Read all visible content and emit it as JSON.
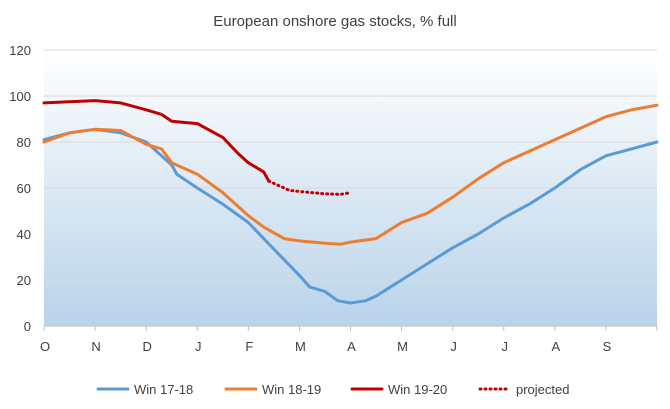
{
  "chart_data": {
    "type": "line",
    "title": "European onshore gas stocks, % full",
    "xlabel": "",
    "ylabel": "",
    "ylim": [
      0,
      120
    ],
    "yticks": [
      "0",
      "20",
      "40",
      "60",
      "80",
      "100",
      "120"
    ],
    "x_months": [
      "O",
      "N",
      "D",
      "J",
      "F",
      "M",
      "A",
      "M",
      "J",
      "J",
      "A",
      "S"
    ],
    "x_axis_note_range_months": [
      0,
      12
    ],
    "grid": true,
    "legend_position": "bottom",
    "background_gradient": [
      "#ffffff",
      "#b9d3ea"
    ],
    "series": [
      {
        "name": "Win 17-18",
        "color": "#5b9bd5",
        "style": "solid",
        "points": [
          [
            0,
            81
          ],
          [
            0.5,
            84
          ],
          [
            1,
            85.5
          ],
          [
            1.5,
            84
          ],
          [
            2,
            80
          ],
          [
            2.5,
            70
          ],
          [
            2.6,
            66
          ],
          [
            3,
            60
          ],
          [
            3.5,
            53
          ],
          [
            4,
            45
          ],
          [
            4.3,
            38
          ],
          [
            5,
            22
          ],
          [
            5.2,
            17
          ],
          [
            5.5,
            15
          ],
          [
            5.75,
            11
          ],
          [
            6,
            10
          ],
          [
            6.3,
            11
          ],
          [
            6.5,
            13
          ],
          [
            7,
            20
          ],
          [
            7.5,
            27
          ],
          [
            8,
            34
          ],
          [
            8.5,
            40
          ],
          [
            9,
            47
          ],
          [
            9.5,
            53
          ],
          [
            10,
            60
          ],
          [
            10.5,
            68
          ],
          [
            11,
            74
          ],
          [
            11.5,
            77
          ],
          [
            12,
            80
          ]
        ]
      },
      {
        "name": "Win 18-19",
        "color": "#ed7d31",
        "style": "solid",
        "points": [
          [
            0,
            80
          ],
          [
            0.5,
            84
          ],
          [
            1,
            85.5
          ],
          [
            1.5,
            85
          ],
          [
            2,
            79
          ],
          [
            2.3,
            77
          ],
          [
            2.5,
            71
          ],
          [
            3,
            66
          ],
          [
            3.5,
            58
          ],
          [
            4,
            48
          ],
          [
            4.3,
            43
          ],
          [
            4.7,
            38
          ],
          [
            5,
            37
          ],
          [
            5.5,
            36
          ],
          [
            5.8,
            35.5
          ],
          [
            6,
            36.5
          ],
          [
            6.5,
            38
          ],
          [
            7,
            45
          ],
          [
            7.5,
            49
          ],
          [
            8,
            56
          ],
          [
            8.5,
            64
          ],
          [
            9,
            71
          ],
          [
            9.5,
            76
          ],
          [
            10,
            81
          ],
          [
            10.5,
            86
          ],
          [
            11,
            91
          ],
          [
            11.5,
            94
          ],
          [
            12,
            96
          ]
        ]
      },
      {
        "name": "Win 19-20",
        "color": "#c00000",
        "style": "solid",
        "points": [
          [
            0,
            97
          ],
          [
            0.5,
            97.5
          ],
          [
            1,
            98
          ],
          [
            1.5,
            97
          ],
          [
            2,
            94
          ],
          [
            2.3,
            92
          ],
          [
            2.5,
            89
          ],
          [
            3,
            88
          ],
          [
            3.5,
            82
          ],
          [
            3.8,
            75
          ],
          [
            4,
            71
          ],
          [
            4.3,
            67
          ],
          [
            4.4,
            63
          ]
        ]
      },
      {
        "name": "projected",
        "color": "#c00000",
        "style": "dotted",
        "points": [
          [
            4.4,
            63
          ],
          [
            4.8,
            59
          ],
          [
            5,
            58.5
          ],
          [
            5.5,
            57.5
          ],
          [
            5.8,
            57.2
          ],
          [
            6,
            58
          ]
        ]
      }
    ]
  }
}
